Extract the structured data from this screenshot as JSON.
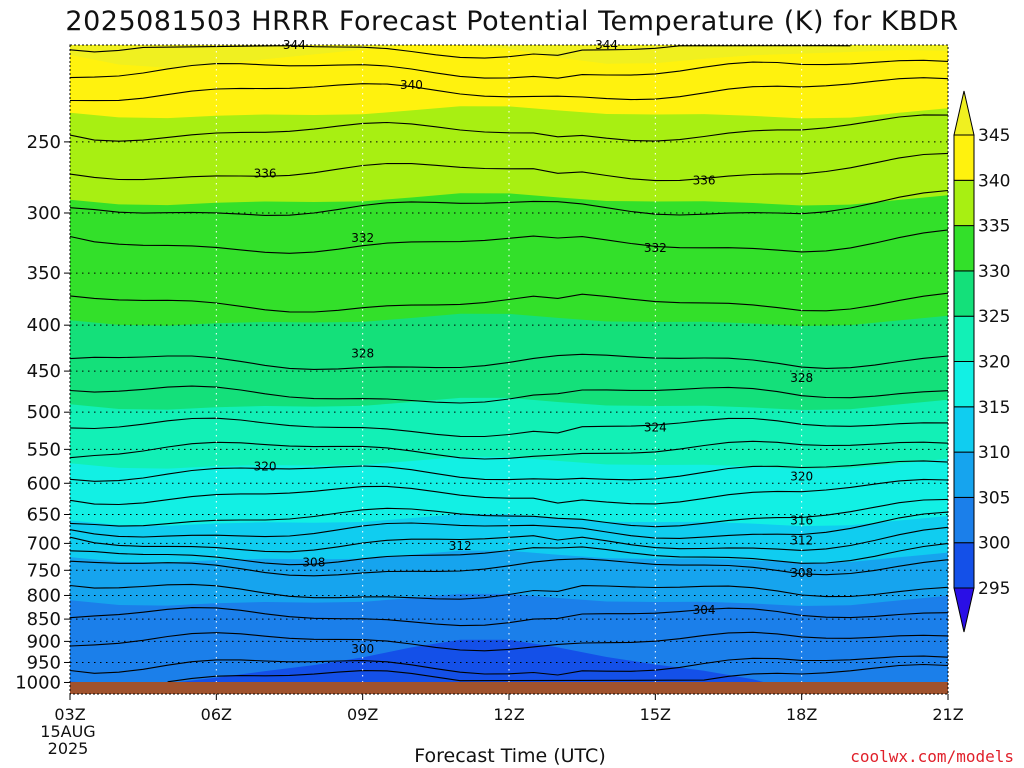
{
  "chart_data": {
    "type": "heatmap",
    "title": "2025081503 HRRR Forecast Potential Temperature (K) for KBDR",
    "xlabel": "Forecast Time (UTC)",
    "ylabel": "",
    "x_ticks": [
      "03Z",
      "06Z",
      "09Z",
      "12Z",
      "15Z",
      "18Z",
      "21Z"
    ],
    "x_start_date": [
      "15AUG",
      "2025"
    ],
    "y_ticks": [
      250,
      300,
      350,
      400,
      450,
      500,
      550,
      600,
      650,
      700,
      750,
      800,
      850,
      900,
      950,
      1000
    ],
    "y_scale": "log",
    "y_reversed": true,
    "grid": true,
    "colorbar": {
      "levels": [
        295,
        300,
        305,
        310,
        315,
        320,
        325,
        330,
        335,
        340,
        345
      ],
      "colors": [
        "#2a0fe6",
        "#1450e8",
        "#1b7fea",
        "#16a4ee",
        "#10cdf0",
        "#12f0e4",
        "#12f0b6",
        "#14e07a",
        "#33e02a",
        "#a8ef12",
        "#fff20e",
        "#f0f020"
      ]
    },
    "series": [
      {
        "name": "",
        "type": "contours",
        "levels": [
          300,
          304,
          308,
          312,
          316,
          320,
          324,
          328,
          332,
          336,
          340,
          344
        ]
      }
    ],
    "contour_labels": [
      {
        "value": "344",
        "time": "06Z+1.6h",
        "pressure": 195
      },
      {
        "value": "344",
        "time": "14Z",
        "pressure": 195
      },
      {
        "value": "340",
        "time": "10Z",
        "pressure": 216
      },
      {
        "value": "336",
        "time": "07Z",
        "pressure": 271
      },
      {
        "value": "336",
        "time": "16Z",
        "pressure": 276
      },
      {
        "value": "332",
        "time": "09Z",
        "pressure": 320
      },
      {
        "value": "332",
        "time": "15Z",
        "pressure": 328
      },
      {
        "value": "328",
        "time": "09Z",
        "pressure": 430
      },
      {
        "value": "328",
        "time": "18Z",
        "pressure": 458
      },
      {
        "value": "324",
        "time": "15Z",
        "pressure": 520
      },
      {
        "value": "320",
        "time": "07Z",
        "pressure": 575
      },
      {
        "value": "320",
        "time": "18Z",
        "pressure": 590
      },
      {
        "value": "316",
        "time": "18Z",
        "pressure": 660
      },
      {
        "value": "312",
        "time": "11Z",
        "pressure": 705
      },
      {
        "value": "312",
        "time": "18Z",
        "pressure": 695
      },
      {
        "value": "308",
        "time": "08Z",
        "pressure": 735
      },
      {
        "value": "308",
        "time": "18Z",
        "pressure": 755
      },
      {
        "value": "304",
        "time": "16Z",
        "pressure": 830
      },
      {
        "value": "300",
        "time": "09Z",
        "pressure": 918
      }
    ],
    "ground_color": "#a0522d",
    "credit": "coolwx.com/models"
  }
}
